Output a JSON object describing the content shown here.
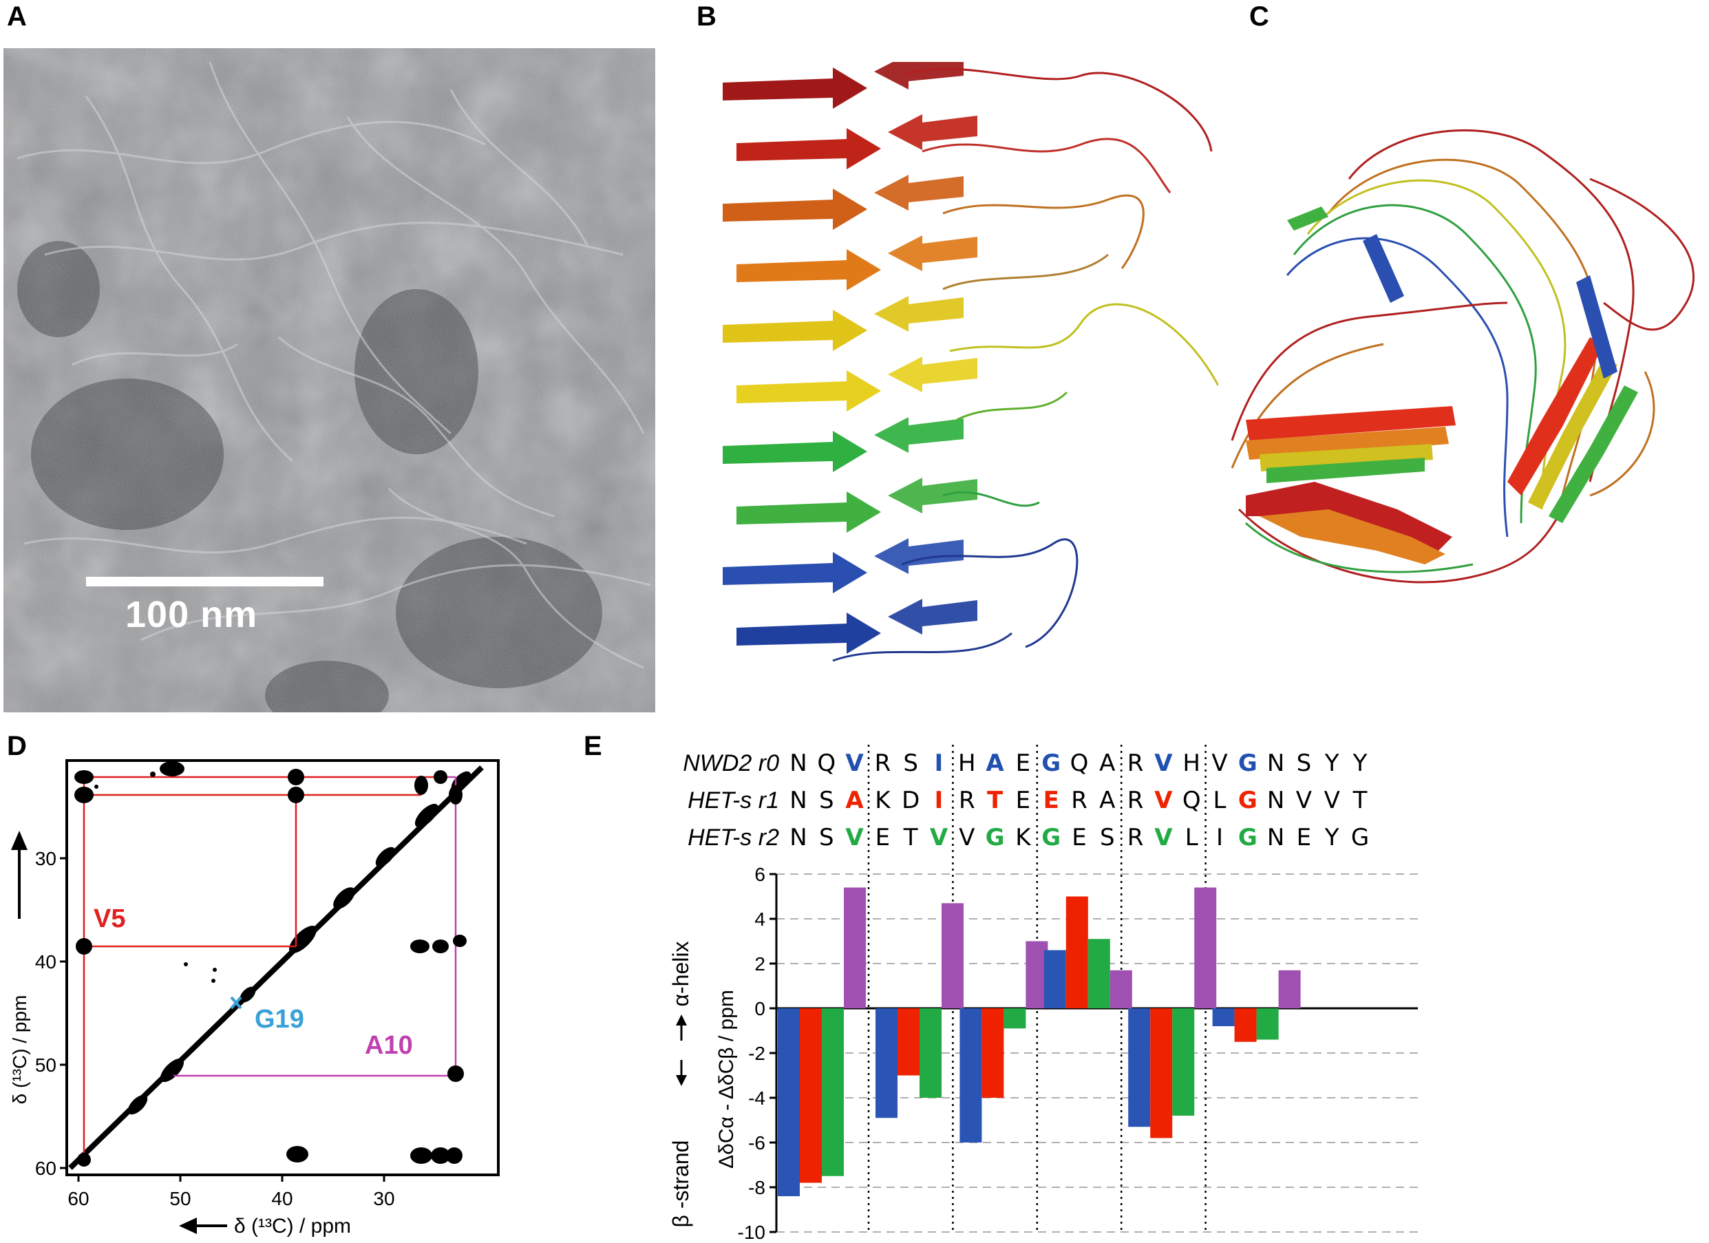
{
  "panels": {
    "a": {
      "letter": "A",
      "scale_bar_label": "100 nm"
    },
    "b": {
      "letter": "B"
    },
    "c": {
      "letter": "C"
    },
    "d": {
      "letter": "D",
      "ylabel": "δ (¹³C) / ppm",
      "xlabel": "δ (¹³C) / ppm",
      "x_ticks": [
        "60",
        "50",
        "40",
        "30"
      ],
      "y_ticks": [
        "30",
        "40",
        "50",
        "60"
      ],
      "labels": [
        {
          "text": "V5",
          "color": "#e02020"
        },
        {
          "text": "G19",
          "color": "#3aa0d8"
        },
        {
          "text": "A10",
          "color": "#c040b0"
        }
      ],
      "marker": "x"
    },
    "e": {
      "letter": "E"
    }
  },
  "chart_data": {
    "type": "bar",
    "ylabel": "ΔδCα - ΔδCβ / ppm",
    "ylabel_top": "α-helix",
    "ylabel_bottom": "β -strand",
    "ylim": [
      -10,
      6
    ],
    "y_ticks": [
      "6",
      "4",
      "2",
      "0",
      "-2",
      "-4",
      "-6",
      "-8",
      "-10"
    ],
    "grid": "dashed horizontal",
    "sequences": [
      {
        "name": "NWD2 r0",
        "residues": [
          "N",
          "Q",
          "V",
          "R",
          "S",
          "I",
          "H",
          "A",
          "E",
          "G",
          "Q",
          "A",
          "R",
          "V",
          "H",
          "V",
          "G",
          "N",
          "S",
          "Y",
          "Y"
        ],
        "colors": [
          "#000",
          "#000",
          "#2050b0",
          "#000",
          "#000",
          "#2050b0",
          "#000",
          "#2050b0",
          "#000",
          "#2050b0",
          "#000",
          "#000",
          "#000",
          "#2050b0",
          "#000",
          "#000",
          "#2050b0",
          "#000",
          "#000",
          "#000",
          "#000"
        ]
      },
      {
        "name": "HET-s r1",
        "residues": [
          "N",
          "S",
          "A",
          "K",
          "D",
          "I",
          "R",
          "T",
          "E",
          "E",
          "R",
          "A",
          "R",
          "V",
          "Q",
          "L",
          "G",
          "N",
          "V",
          "V",
          "T"
        ],
        "colors": [
          "#000",
          "#000",
          "#ee2200",
          "#000",
          "#000",
          "#ee2200",
          "#000",
          "#ee2200",
          "#000",
          "#ee2200",
          "#000",
          "#000",
          "#000",
          "#ee2200",
          "#000",
          "#000",
          "#ee2200",
          "#000",
          "#000",
          "#000",
          "#000"
        ]
      },
      {
        "name": "HET-s r2",
        "residues": [
          "N",
          "S",
          "V",
          "E",
          "T",
          "V",
          "V",
          "G",
          "K",
          "G",
          "E",
          "S",
          "R",
          "V",
          "L",
          "I",
          "G",
          "N",
          "E",
          "Y",
          "G"
        ],
        "colors": [
          "#000",
          "#000",
          "#22aa44",
          "#000",
          "#000",
          "#22aa44",
          "#000",
          "#22aa44",
          "#000",
          "#22aa44",
          "#000",
          "#000",
          "#000",
          "#22aa44",
          "#000",
          "#000",
          "#22aa44",
          "#000",
          "#000",
          "#000",
          "#000"
        ]
      }
    ],
    "groups": 6,
    "series": [
      {
        "color": "#2a55b5",
        "values": [
          -8.4,
          -4.9,
          -6.0,
          2.6,
          -5.3,
          -0.8
        ]
      },
      {
        "color": "#ee2200",
        "values": [
          -7.8,
          -3.0,
          -4.0,
          5.0,
          -5.8,
          -1.5
        ]
      },
      {
        "color": "#22aa44",
        "values": [
          -7.5,
          -4.0,
          -0.9,
          3.1,
          -4.8,
          -1.4
        ]
      },
      {
        "color": "#a050b0",
        "values": [
          5.4,
          4.7,
          3.0,
          1.7,
          5.4,
          1.7
        ]
      }
    ]
  }
}
